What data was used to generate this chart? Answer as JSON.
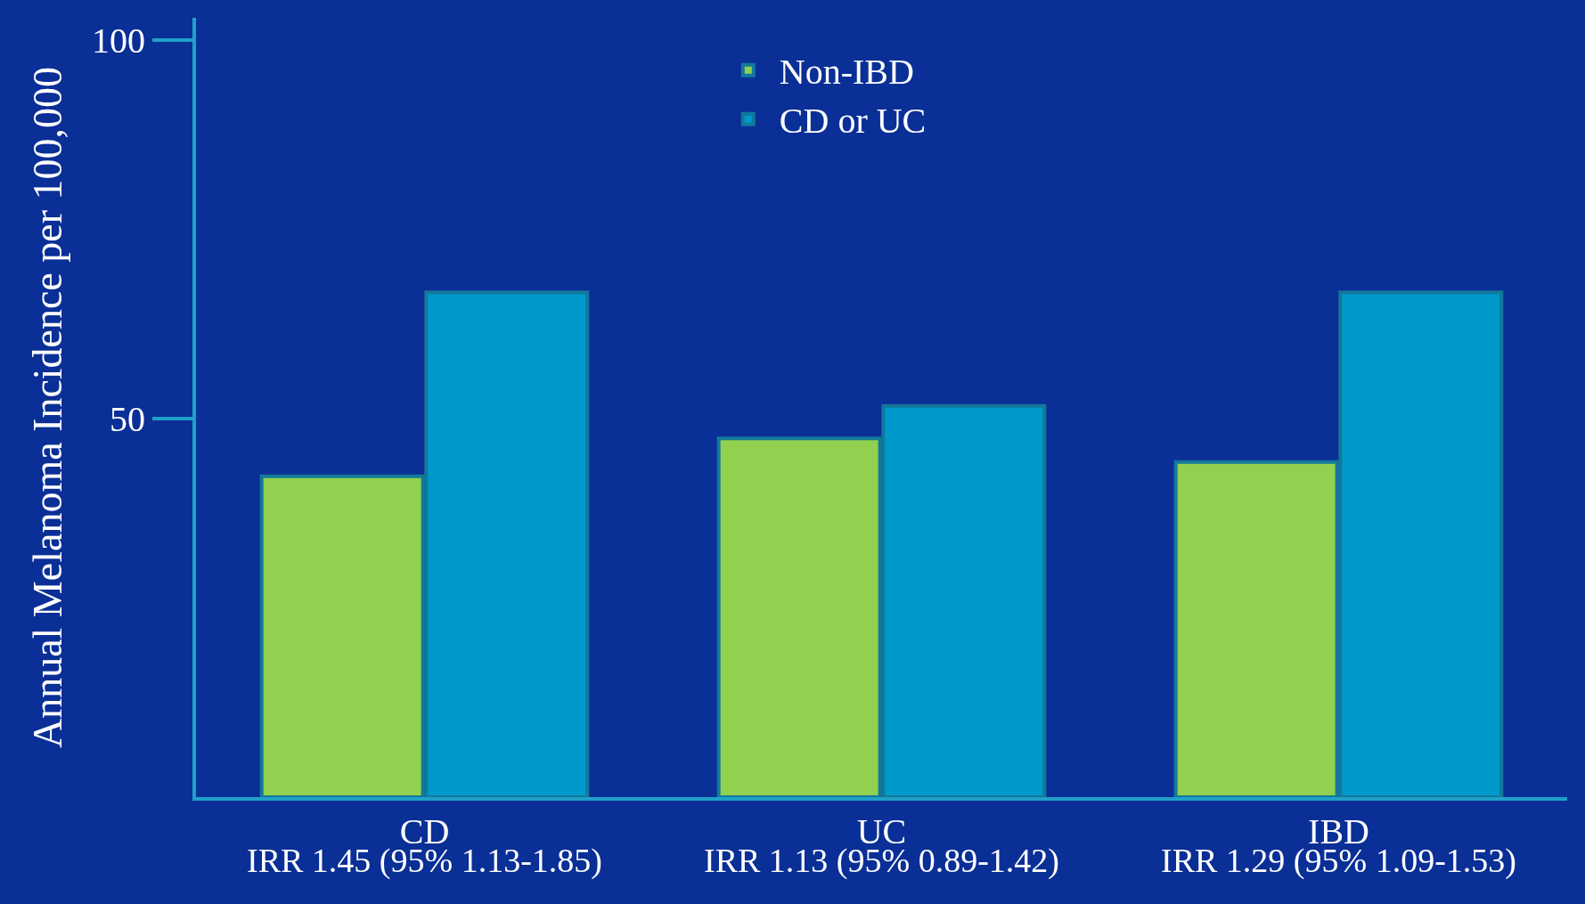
{
  "chart_data": {
    "type": "bar",
    "ylabel": "Annual Melanoma Incidence per 100,000",
    "categories": [
      "CD",
      "UC",
      "IBD"
    ],
    "series": [
      {
        "name": "Non-IBD",
        "color": "#92d050",
        "values": [
          42.4,
          47.4,
          44.3
        ]
      },
      {
        "name": "CD or UC",
        "color": "#0099cc",
        "values": [
          66.7,
          51.7,
          66.7
        ]
      }
    ],
    "annotations": [
      "IRR 1.45 (95% 1.13-1.85)",
      "IRR 1.13 (95% 0.89-1.42)",
      "IRR 1.29 (95% 1.09-1.53)"
    ],
    "ylim": [
      0,
      103
    ],
    "yticks": [
      50,
      100
    ],
    "grid": false,
    "legend": "top"
  }
}
